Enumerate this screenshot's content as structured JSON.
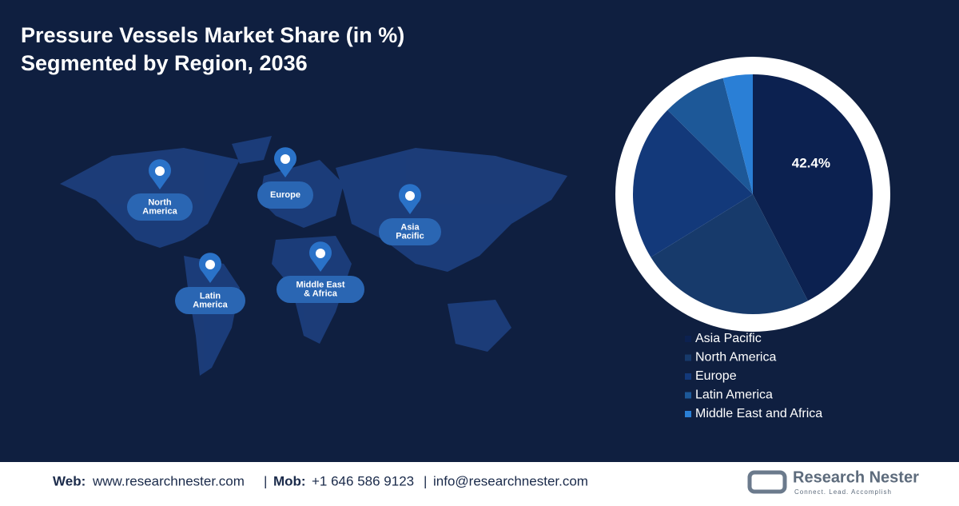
{
  "chart_data": {
    "type": "pie",
    "title": [
      "Pressure Vessels Market Share (in %)",
      "Segmented by Region, 2036"
    ],
    "categories": [
      "Asia Pacific",
      "North America",
      "Europe",
      "Latin America",
      "Middle East and Africa"
    ],
    "values": [
      42.4,
      23.8,
      21.2,
      8.6,
      4.0
    ],
    "value_labels": [
      "42.4%",
      null,
      null,
      null,
      null
    ],
    "colors": [
      "#0c2150",
      "#173a6b",
      "#13397a",
      "#1d5898",
      "#2a7fd6"
    ]
  },
  "map": {
    "labels": [
      {
        "lines": [
          "North",
          "America"
        ]
      },
      {
        "lines": [
          "Europe"
        ]
      },
      {
        "lines": [
          "Asia",
          "Pacific"
        ]
      },
      {
        "lines": [
          "Middle East",
          "& Africa"
        ]
      },
      {
        "lines": [
          "Latin",
          "America"
        ]
      }
    ]
  },
  "footer": {
    "web_label": "Web:",
    "web": "www.researchnester.com",
    "sep1": "|",
    "mob_label": "Mob:",
    "mob": "+1 646 586 9123",
    "sep2": "|",
    "email": "info@researchnester.com",
    "brand": "Research Nester",
    "tagline": "Connect. Lead. Accomplish"
  }
}
